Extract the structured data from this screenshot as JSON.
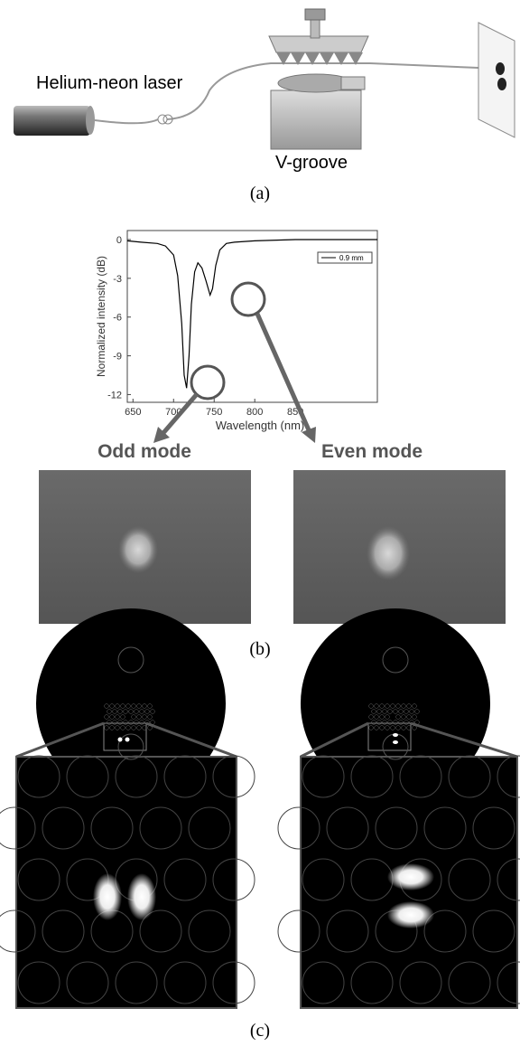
{
  "panel_a": {
    "laser_label": "Helium-neon laser",
    "groove_label": "V-groove",
    "caption": "(a)"
  },
  "chart_data": {
    "type": "line",
    "x_label": "Wavelength (nm)",
    "y_label": "Normalized intensity (dB)",
    "xlim": [
      643,
      951
    ],
    "xticks": [
      650,
      700,
      750,
      800,
      850
    ],
    "ylim": [
      -12.6,
      0.7
    ],
    "yticks": [
      0,
      -3,
      -6,
      -9,
      -12
    ],
    "x": [
      643,
      660,
      680,
      690,
      700,
      705,
      710,
      713,
      716,
      719,
      722,
      726,
      730,
      735,
      740,
      745,
      748,
      752,
      757,
      765,
      775,
      800,
      850,
      900,
      951
    ],
    "series": [
      {
        "name": "0.9 mm",
        "color": "#000000",
        "values": [
          -0.1,
          -0.2,
          -0.3,
          -0.5,
          -1.2,
          -2.8,
          -6.5,
          -10.5,
          -11.5,
          -9,
          -5,
          -2.5,
          -1.8,
          -2.2,
          -3.2,
          -4.3,
          -3.8,
          -2,
          -0.8,
          -0.3,
          -0.2,
          -0.1,
          0,
          0,
          0
        ]
      }
    ]
  },
  "panel_b": {
    "odd_label": "Odd mode",
    "even_label": "Even mode",
    "caption": "(b)"
  },
  "panel_c": {
    "caption": "(c)"
  }
}
